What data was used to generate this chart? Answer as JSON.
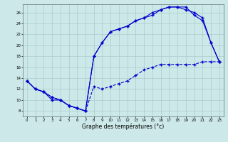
{
  "xlabel": "Graphe des températures (°c)",
  "ylabel": "",
  "xlim": [
    -0.5,
    23.5
  ],
  "ylim": [
    7,
    27.5
  ],
  "yticks": [
    8,
    10,
    12,
    14,
    16,
    18,
    20,
    22,
    24,
    26
  ],
  "xticks": [
    0,
    1,
    2,
    3,
    4,
    5,
    6,
    7,
    8,
    9,
    10,
    11,
    12,
    13,
    14,
    15,
    16,
    17,
    18,
    19,
    20,
    21,
    22,
    23
  ],
  "bg_color": "#cce8e8",
  "line_color": "#0000cc",
  "grid_color": "#aacccc",
  "line1_x": [
    0,
    1,
    2,
    3,
    4,
    5,
    6,
    7,
    8,
    9,
    10,
    11,
    12,
    13,
    14,
    15,
    16,
    17,
    18,
    19,
    20,
    21,
    22,
    23
  ],
  "line1_y": [
    13.5,
    12.0,
    11.5,
    10.5,
    10.0,
    9.0,
    8.5,
    8.0,
    12.5,
    12.0,
    12.5,
    13.0,
    13.5,
    14.5,
    15.5,
    16.0,
    16.5,
    16.5,
    16.5,
    16.5,
    16.5,
    17.0,
    17.0,
    17.0
  ],
  "line2_x": [
    0,
    1,
    2,
    3,
    4,
    5,
    6,
    7,
    8,
    9,
    10,
    11,
    12,
    13,
    14,
    15,
    16,
    17,
    18,
    19,
    20,
    21,
    22,
    23
  ],
  "line2_y": [
    13.5,
    12.0,
    11.5,
    10.0,
    10.0,
    9.0,
    8.5,
    8.0,
    18.0,
    20.5,
    22.5,
    23.0,
    23.5,
    24.5,
    25.0,
    26.0,
    26.5,
    27.0,
    27.0,
    26.5,
    26.0,
    25.0,
    20.5,
    17.0
  ],
  "line3_x": [
    0,
    1,
    2,
    3,
    4,
    5,
    6,
    7,
    8,
    9,
    10,
    11,
    12,
    13,
    14,
    15,
    16,
    17,
    18,
    19,
    20,
    21,
    22,
    23
  ],
  "line3_y": [
    13.5,
    12.0,
    11.5,
    10.5,
    10.0,
    9.0,
    8.5,
    8.0,
    18.0,
    20.5,
    22.5,
    23.0,
    23.5,
    24.5,
    25.0,
    25.5,
    26.5,
    27.0,
    27.0,
    27.0,
    25.5,
    24.5,
    20.5,
    17.0
  ],
  "marker": "+",
  "markersize": 3,
  "linewidth": 0.8,
  "tick_fontsize": 4.0,
  "xlabel_fontsize": 5.5
}
